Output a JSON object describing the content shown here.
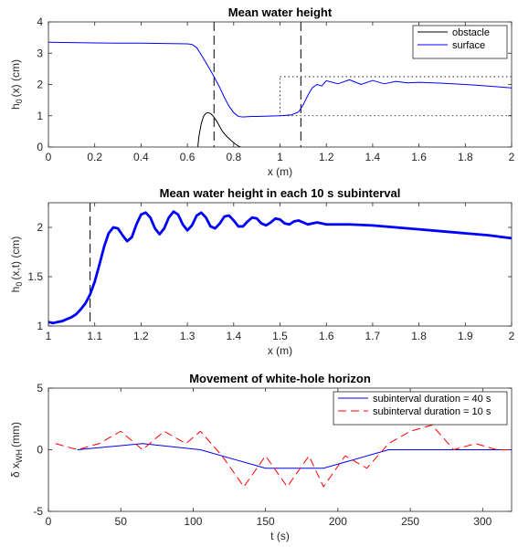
{
  "chart_data": [
    {
      "type": "line",
      "title": "Mean water height",
      "xlabel": "x (m)",
      "ylabel_main": "h",
      "ylabel_sub": "0",
      "ylabel_rest": "(x) (cm)",
      "xlim": [
        0,
        2
      ],
      "ylim": [
        0,
        4
      ],
      "xticks": [
        0,
        0.2,
        0.4,
        0.6,
        0.8,
        1,
        1.2,
        1.4,
        1.6,
        1.8,
        2
      ],
      "xtick_labels": [
        "0",
        "0.2",
        "0.4",
        "0.6",
        "0.8",
        "1",
        "1.2",
        "1.4",
        "1.6",
        "1.8",
        "2"
      ],
      "yticks": [
        0,
        1,
        2,
        3,
        4
      ],
      "ytick_labels": [
        "0",
        "1",
        "2",
        "3",
        "4"
      ],
      "legend_position": "top-right",
      "vlines_dashed": [
        0.715,
        1.09
      ],
      "zoom_box": {
        "x": [
          1.0,
          2.0
        ],
        "y": [
          1.0,
          2.25
        ]
      },
      "series": [
        {
          "name": "obstacle",
          "color": "#000000",
          "x": [
            0.645,
            0.65,
            0.66,
            0.67,
            0.68,
            0.69,
            0.7,
            0.71,
            0.72,
            0.73,
            0.74,
            0.75,
            0.76,
            0.77,
            0.78,
            0.79,
            0.8,
            0.81,
            0.82,
            0.83
          ],
          "y": [
            0,
            0.35,
            0.75,
            0.98,
            1.08,
            1.1,
            1.07,
            1.0,
            0.9,
            0.78,
            0.65,
            0.52,
            0.42,
            0.34,
            0.27,
            0.2,
            0.14,
            0.08,
            0.03,
            0
          ]
        },
        {
          "name": "surface",
          "color": "#0000ff",
          "x": [
            0,
            0.1,
            0.2,
            0.3,
            0.4,
            0.5,
            0.6,
            0.62,
            0.64,
            0.66,
            0.68,
            0.7,
            0.72,
            0.74,
            0.76,
            0.78,
            0.8,
            0.82,
            0.84,
            0.86,
            0.88,
            0.9,
            0.95,
            1.0,
            1.05,
            1.08,
            1.1,
            1.12,
            1.14,
            1.16,
            1.18,
            1.2,
            1.25,
            1.3,
            1.35,
            1.4,
            1.45,
            1.5,
            1.55,
            1.6,
            1.7,
            1.8,
            1.9,
            2.0
          ],
          "y": [
            3.35,
            3.34,
            3.33,
            3.32,
            3.32,
            3.31,
            3.3,
            3.28,
            3.18,
            2.95,
            2.7,
            2.45,
            2.18,
            1.9,
            1.58,
            1.3,
            1.1,
            0.98,
            0.96,
            0.97,
            0.98,
            0.98,
            0.99,
            1.0,
            1.03,
            1.12,
            1.35,
            1.65,
            1.9,
            2.0,
            1.95,
            2.12,
            2.02,
            2.15,
            2.0,
            2.13,
            2.02,
            2.1,
            2.05,
            2.07,
            2.04,
            2.0,
            1.95,
            1.89
          ]
        }
      ]
    },
    {
      "type": "line",
      "title": "Mean water height in each 10 s subinterval",
      "xlabel": "x (m)",
      "ylabel_main": "h",
      "ylabel_sub": "0",
      "ylabel_rest": "(x,t) (cm)",
      "xlim": [
        1,
        2
      ],
      "ylim": [
        1,
        2.25
      ],
      "xticks": [
        1,
        1.1,
        1.2,
        1.3,
        1.4,
        1.5,
        1.6,
        1.7,
        1.8,
        1.9,
        2
      ],
      "xtick_labels": [
        "1",
        "1.1",
        "1.2",
        "1.3",
        "1.4",
        "1.5",
        "1.6",
        "1.7",
        "1.8",
        "1.9",
        "2"
      ],
      "yticks": [
        1,
        1.5,
        2
      ],
      "ytick_labels": [
        "1",
        "1.5",
        "2"
      ],
      "vlines_dashed": [
        1.09
      ],
      "series": [
        {
          "color": "#0000ff",
          "x": [
            1.0,
            1.01,
            1.02,
            1.03,
            1.04,
            1.05,
            1.06,
            1.07,
            1.08,
            1.09,
            1.1,
            1.11,
            1.12,
            1.13,
            1.14,
            1.15,
            1.16,
            1.17,
            1.18,
            1.19,
            1.2,
            1.21,
            1.22,
            1.23,
            1.24,
            1.25,
            1.26,
            1.27,
            1.28,
            1.29,
            1.3,
            1.31,
            1.32,
            1.33,
            1.34,
            1.35,
            1.36,
            1.37,
            1.38,
            1.39,
            1.4,
            1.41,
            1.42,
            1.43,
            1.44,
            1.45,
            1.46,
            1.47,
            1.48,
            1.49,
            1.5,
            1.51,
            1.52,
            1.53,
            1.54,
            1.55,
            1.56,
            1.57,
            1.58,
            1.59,
            1.6,
            1.65,
            1.7,
            1.75,
            1.8,
            1.85,
            1.9,
            1.95,
            2.0
          ],
          "y": [
            1.04,
            1.03,
            1.04,
            1.05,
            1.07,
            1.09,
            1.12,
            1.17,
            1.23,
            1.32,
            1.45,
            1.62,
            1.8,
            1.94,
            2.0,
            1.99,
            1.92,
            1.86,
            1.9,
            2.03,
            2.13,
            2.15,
            2.1,
            1.99,
            1.93,
            1.99,
            2.1,
            2.16,
            2.13,
            2.03,
            1.97,
            2.02,
            2.12,
            2.15,
            2.1,
            2.01,
            1.99,
            2.04,
            2.11,
            2.12,
            2.07,
            2.01,
            2.01,
            2.06,
            2.1,
            2.09,
            2.04,
            2.02,
            2.05,
            2.09,
            2.08,
            2.04,
            2.03,
            2.06,
            2.07,
            2.05,
            2.03,
            2.04,
            2.05,
            2.04,
            2.03,
            2.03,
            2.02,
            2.0,
            1.98,
            1.96,
            1.94,
            1.92,
            1.89
          ]
        }
      ]
    },
    {
      "type": "line",
      "title": "Movement of white-hole horizon",
      "xlabel": "t (s)",
      "ylabel_main": "δ x",
      "ylabel_sub": "WH",
      "ylabel_rest": "(mm)",
      "xlim": [
        0,
        320
      ],
      "ylim": [
        -5,
        5
      ],
      "xticks": [
        0,
        50,
        100,
        150,
        200,
        250,
        300
      ],
      "xtick_labels": [
        "0",
        "50",
        "100",
        "150",
        "200",
        "250",
        "300"
      ],
      "yticks": [
        -5,
        0,
        5
      ],
      "ytick_labels": [
        "-5",
        "0",
        "5"
      ],
      "legend_position": "top-right",
      "series": [
        {
          "name": "subinterval duration = 40 s",
          "color": "#0000ff",
          "dash": false,
          "x": [
            20,
            65,
            105,
            150,
            190,
            235,
            275,
            320
          ],
          "y": [
            0,
            0.5,
            0,
            -1.5,
            -1.5,
            0,
            0,
            0
          ]
        },
        {
          "name": "subinterval duration = 10 s",
          "color": "#ff0000",
          "dash": true,
          "x": [
            5,
            20,
            35,
            50,
            65,
            80,
            95,
            105,
            120,
            135,
            150,
            165,
            180,
            190,
            205,
            220,
            235,
            250,
            265,
            280,
            295,
            310,
            320
          ],
          "y": [
            0.5,
            0,
            0.5,
            1.5,
            0,
            1.5,
            0.5,
            1.5,
            -0.5,
            -3,
            -0.5,
            -3,
            -0.5,
            -3,
            -0.5,
            -1.5,
            0.5,
            1.5,
            2,
            0,
            0.5,
            0,
            0
          ]
        }
      ]
    }
  ]
}
